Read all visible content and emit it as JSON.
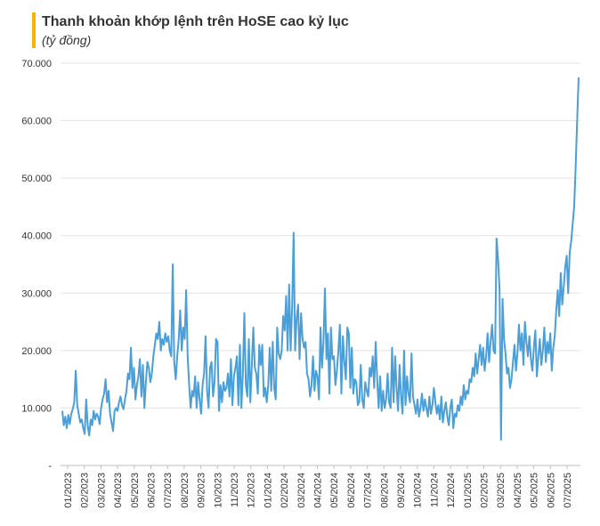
{
  "chart_data": {
    "type": "line",
    "title": "Thanh khoản khớp lệnh trên HoSE cao kỷ lục",
    "subtitle": "(tỷ đồng)",
    "xlabel": "",
    "ylabel": "",
    "ylim": [
      0,
      70000
    ],
    "y_ticks": [
      {
        "value": 0,
        "label": "-"
      },
      {
        "value": 10000,
        "label": "10.000"
      },
      {
        "value": 20000,
        "label": "20.000"
      },
      {
        "value": 30000,
        "label": "30.000"
      },
      {
        "value": 40000,
        "label": "40.000"
      },
      {
        "value": 50000,
        "label": "50.000"
      },
      {
        "value": 60000,
        "label": "60.000"
      },
      {
        "value": 70000,
        "label": "70.000"
      }
    ],
    "x_tick_labels": [
      "01/2023",
      "02/2023",
      "03/2023",
      "04/2023",
      "05/2023",
      "06/2023",
      "07/2023",
      "08/2023",
      "09/2023",
      "10/2023",
      "11/2023",
      "12/2023",
      "01/2024",
      "02/2024",
      "03/2024",
      "04/2024",
      "05/2024",
      "06/2024",
      "07/2024",
      "08/2024",
      "09/2024",
      "10/2024",
      "11/2024",
      "12/2024",
      "01/2025",
      "02/2025",
      "03/2025",
      "04/2025",
      "05/2025",
      "06/2025",
      "07/2025"
    ],
    "grid": true,
    "legend": "none",
    "line_color": "#4a9fd8",
    "series": [
      {
        "monthly_points": [
          [
            "01/2023",
            [
              9500,
              7000,
              8500,
              6500,
              8800,
              7200,
              9000
            ]
          ],
          [
            "02/2023",
            [
              9800,
              11000,
              16500,
              10500,
              9000,
              7500
            ]
          ],
          [
            "03/2023",
            [
              8000,
              6500,
              5500,
              11500,
              7000,
              5200,
              8000,
              7000
            ]
          ],
          [
            "04/2023",
            [
              9500,
              8000,
              9000,
              8500,
              7200,
              10000,
              11500
            ]
          ],
          [
            "05/2023",
            [
              12500,
              15000,
              11000,
              13000,
              9000,
              7500,
              6000,
              9500
            ]
          ],
          [
            "06/2023",
            [
              10000,
              9500,
              11000,
              12000,
              10500,
              9800,
              11500
            ]
          ],
          [
            "07/2023",
            [
              13000,
              16000,
              15000,
              20500,
              13500,
              17000,
              11500,
              14000
            ]
          ],
          [
            "08/2023",
            [
              15500,
              18500,
              12000,
              17500,
              10000,
              14500,
              18000,
              17000
            ]
          ],
          [
            "09/2023",
            [
              14500,
              16000,
              19000,
              21000,
              23000,
              22000,
              25000
            ]
          ],
          [
            "10/2023",
            [
              20000,
              22000,
              21000,
              23000,
              21500,
              22500,
              20000
            ]
          ],
          [
            "11/2023",
            [
              19000,
              35000,
              18000,
              15000,
              19000,
              22000,
              27000,
              20000
            ]
          ],
          [
            "12/2023",
            [
              24000,
              22000,
              30500,
              19000,
              14000,
              10000,
              13000
            ]
          ],
          [
            "01/2024",
            [
              12000,
              15500,
              10000,
              14500,
              11500,
              9000,
              14000,
              16000
            ]
          ],
          [
            "02/2024",
            [
              22500,
              13000,
              10000,
              17000,
              18000,
              12000,
              14500
            ]
          ],
          [
            "03/2024",
            [
              22000,
              21500,
              9500,
              14000,
              11000,
              14500,
              13000
            ]
          ],
          [
            "04/2024",
            [
              13500,
              16000,
              12000,
              18500,
              10500,
              15500,
              17000
            ]
          ],
          [
            "05/2024",
            [
              19000,
              10500,
              21000,
              10000,
              16000,
              26500,
              14000,
              12000
            ]
          ],
          [
            "06/2024",
            [
              22000,
              11000,
              17500,
              24000,
              17000,
              16000,
              12500,
              21000
            ]
          ],
          [
            "07/2024",
            [
              17500,
              21000,
              12000,
              13500,
              11000,
              14000,
              20500,
              13000
            ]
          ],
          [
            "08/2024",
            [
              21500,
              13500,
              11500,
              24000,
              19500,
              18500,
              20000
            ]
          ],
          [
            "09/2024",
            [
              26000,
              23500,
              29500,
              20000,
              31500,
              20000,
              27500,
              40500
            ]
          ],
          [
            "10/2024",
            [
              20000,
              25500,
              28000,
              18500,
              26500,
              22000,
              20500,
              21500
            ]
          ],
          [
            "11/2024",
            [
              16000,
              15000,
              12000,
              14000,
              19000,
              13000,
              16500,
              15500
            ]
          ],
          [
            "12/2024",
            [
              11500,
              24000,
              17000,
              21500,
              30800,
              18500,
              23000
            ]
          ],
          [
            "01/2025",
            [
              12500,
              24000,
              18500,
              19000,
              14000,
              16500,
              20000,
              24500
            ]
          ],
          [
            "02/2025",
            [
              12500,
              22500,
              18000,
              15000,
              24000,
              23000,
              13500,
              20500
            ]
          ],
          [
            "03/2025",
            [
              12500,
              15000,
              14500,
              10500,
              11000,
              17500,
              11500,
              10000
            ]
          ],
          [
            "04/2025",
            [
              14500,
              13000,
              12000,
              17000,
              15500,
              19000,
              13500,
              21500
            ]
          ],
          [
            "05/2025",
            [
              15000,
              10000,
              15500,
              9500,
              13000,
              10000,
              11500,
              16000
            ]
          ],
          [
            "06/2025",
            [
              11000,
              10000,
              20500,
              11000,
              19000,
              13500,
              9500,
              17500
            ]
          ],
          [
            "07/2025",
            [
              12000,
              9000,
              20000,
              10500,
              15500,
              12500,
              11000,
              19500
            ]
          ]
        ],
        "values": [
          9500,
          7000,
          8500,
          6500,
          8800,
          7200,
          9000,
          9800,
          11000,
          16500,
          10500,
          9000,
          7500,
          8000,
          6500,
          5500,
          11500,
          7000,
          5200,
          8000,
          7000,
          9500,
          8000,
          9000,
          8500,
          7200,
          10000,
          11500,
          12500,
          15000,
          11000,
          13000,
          9000,
          7500,
          6000,
          9500,
          10000,
          9500,
          11000,
          12000,
          10500,
          9800,
          11500,
          13000,
          16000,
          15000,
          20500,
          13500,
          17000,
          11500,
          14000,
          15500,
          18500,
          12000,
          17500,
          10000,
          14500,
          18000,
          17000,
          14500,
          16000,
          19000,
          21000,
          23000,
          22000,
          25000,
          20000,
          22000,
          21000,
          23000,
          21500,
          22500,
          20000,
          19000,
          35000,
          18000,
          15000,
          19000,
          22000,
          27000,
          20000,
          24000,
          22000,
          30500,
          19000,
          14000,
          10000,
          13000,
          12000,
          15500,
          10000,
          14500,
          11500,
          9000,
          14000,
          16000,
          22500,
          13000,
          10000,
          17000,
          18000,
          12000,
          14500,
          22000,
          21500,
          9500,
          14000,
          11000,
          14500,
          13000,
          13500,
          16000,
          12000,
          18500,
          10500,
          15500,
          17000,
          19000,
          10500,
          21000,
          10000,
          16000,
          26500,
          14000,
          12000,
          22000,
          11000,
          17500,
          24000,
          17000,
          16000,
          12500,
          21000,
          17500,
          21000,
          12000,
          13500,
          11000,
          14000,
          20500,
          13000,
          21500,
          13500,
          11500,
          24000,
          19500,
          18500,
          20000,
          26000,
          23500,
          29500,
          20000,
          31500,
          20000,
          27500,
          40500,
          20000,
          25500,
          28000,
          18500,
          26500,
          22000,
          20500,
          21500,
          16000,
          15000,
          12000,
          14000,
          19000,
          13000,
          16500,
          15500,
          11500,
          24000,
          17000,
          21500,
          30800,
          18500,
          23000,
          12500,
          24000,
          18500,
          19000,
          14000,
          16500,
          20000,
          24500,
          12500,
          22500,
          18000,
          15000,
          24000,
          23000,
          13500,
          20500,
          12500,
          15000,
          14500,
          10500,
          11000,
          17500,
          11500,
          10000,
          14500,
          13000,
          12000,
          17000,
          15500,
          19000,
          13500,
          21500,
          15000,
          10000,
          15500,
          9500,
          13000,
          10000,
          11500,
          16000,
          11000,
          10000,
          20500,
          11000,
          19000,
          13500,
          9500,
          17500,
          12000,
          9000,
          20000,
          10500,
          15500,
          12500,
          11000,
          19500,
          12000,
          10500,
          9000,
          11500,
          8500,
          10000,
          12500,
          9500,
          11500,
          10000,
          8500,
          12000,
          9000,
          10500,
          13500,
          11000,
          9000,
          10500,
          8000,
          12000,
          7500,
          9500,
          11000,
          8500,
          7000,
          10000,
          11500,
          6500,
          9000,
          8500,
          10500,
          9500,
          12000,
          10500,
          14000,
          11500,
          13000,
          12500,
          15000,
          14500,
          17000,
          15500,
          19500,
          16000,
          18500,
          21000,
          17500,
          20500,
          16500,
          19000,
          23000,
          18000,
          21500,
          24500,
          20000,
          19500,
          39500,
          36000,
          30500,
          4500,
          29000,
          22000,
          19500,
          16000,
          17000,
          13500,
          15000,
          18000,
          21000,
          16500,
          19500,
          24500,
          20000,
          23000,
          17500,
          25000,
          21500,
          19000,
          22500,
          18500,
          16500,
          20500,
          23500,
          15500,
          19000,
          22000,
          17500,
          20000,
          24000,
          18000,
          21500,
          19500,
          23000,
          16500,
          20500,
          22500,
          27000,
          30500,
          26000,
          33500,
          28000,
          31000,
          34500,
          36500,
          30000,
          37000,
          39000,
          42000,
          45000,
          52000,
          60000,
          67500
        ]
      }
    ]
  }
}
